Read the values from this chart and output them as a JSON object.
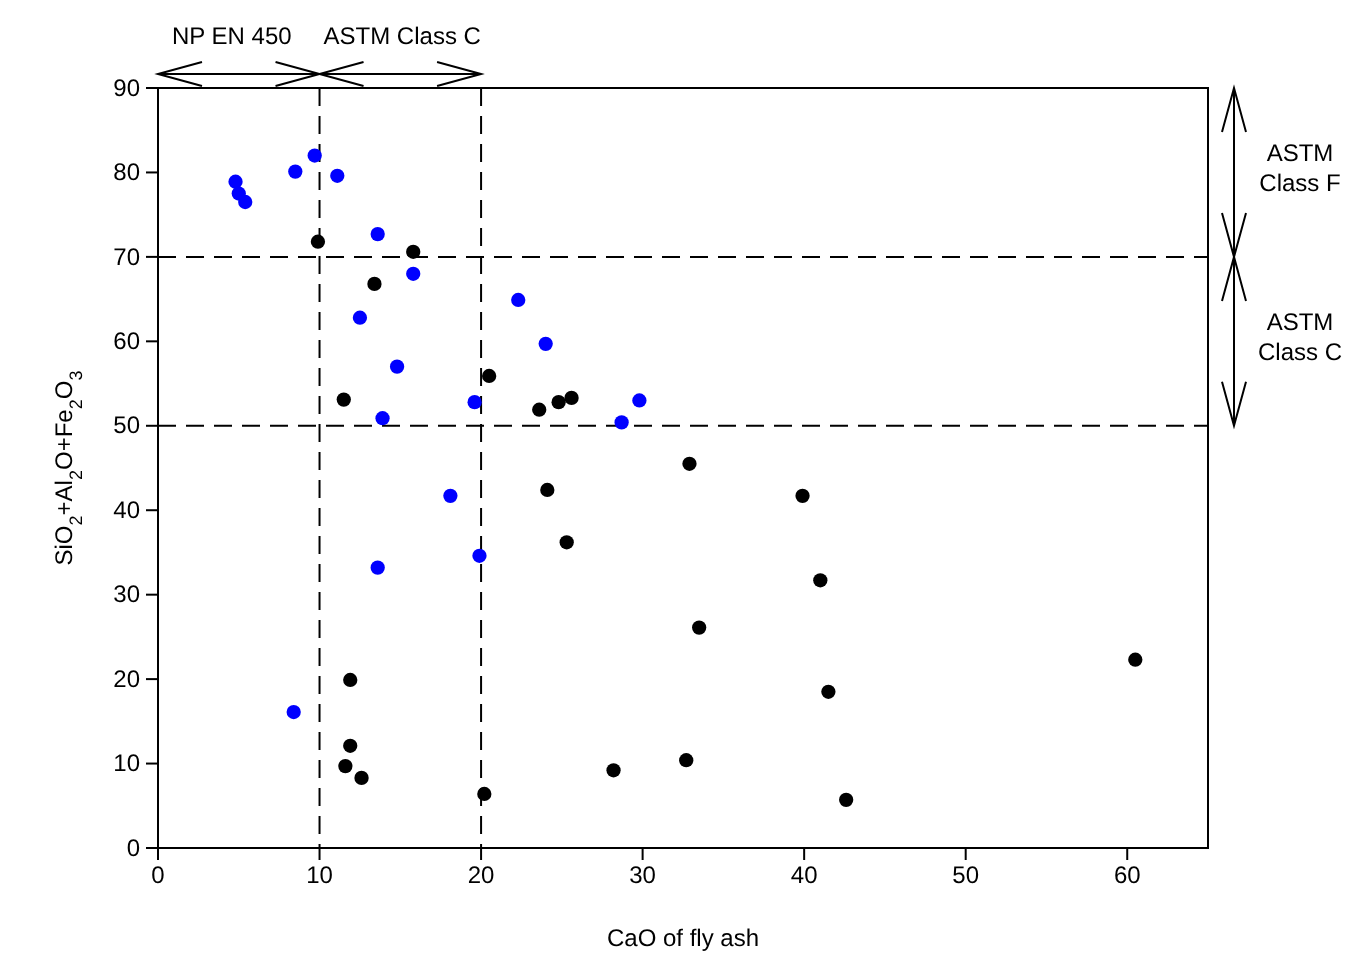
{
  "chart_data": {
    "type": "scatter",
    "xlabel": "CaO of fly ash",
    "ylabel": "SiO$_{2}$+Al$_{2}$O+Fe$_{2}$O$_{3}$",
    "xlim": [
      0,
      65
    ],
    "ylim": [
      0,
      90
    ],
    "xticks": [
      0,
      10,
      20,
      30,
      40,
      50,
      60
    ],
    "yticks": [
      0,
      10,
      20,
      30,
      40,
      50,
      60,
      70,
      80,
      90
    ],
    "grid": false,
    "marker": "circle",
    "series": [
      {
        "color": "#0000ff",
        "x": [
          4.8,
          5.0,
          5.4,
          8.5,
          9.7,
          11.1,
          13.6,
          15.8,
          12.5,
          14.8,
          13.9,
          22.3,
          24.0,
          19.6,
          28.7,
          29.8,
          18.1,
          19.9,
          13.6,
          8.4
        ],
        "values": [
          78.9,
          77.5,
          76.5,
          80.1,
          82,
          79.6,
          72.7,
          68,
          62.8,
          57,
          50.9,
          64.9,
          59.7,
          52.8,
          50.4,
          53,
          41.7,
          34.6,
          33.2,
          16.1
        ]
      },
      {
        "color": "#000000",
        "x": [
          9.9,
          15.8,
          13.4,
          11.5,
          20.5,
          23.6,
          24.8,
          25.6,
          32.9,
          39.9,
          41.0,
          33.5,
          24.1,
          25.3,
          11.9,
          41.5,
          60.5,
          11.9,
          11.6,
          12.6,
          20.2,
          28.2,
          32.7,
          42.6
        ],
        "values": [
          71.8,
          70.6,
          66.8,
          53.1,
          55.9,
          51.9,
          52.8,
          53.3,
          45.5,
          41.7,
          31.7,
          26.1,
          42.4,
          36.2,
          19.9,
          18.5,
          22.3,
          12.1,
          9.7,
          8.3,
          6.4,
          9.2,
          10.4,
          5.7
        ]
      }
    ],
    "ref_lines": [
      {
        "axis": "x",
        "value": 10,
        "line_style": "dashed"
      },
      {
        "axis": "x",
        "value": 20,
        "line_style": "dashed"
      },
      {
        "axis": "y",
        "value": 50,
        "line_style": "dashed"
      },
      {
        "axis": "y",
        "value": 70,
        "line_style": "dashed"
      }
    ],
    "annotations": [
      "NP EN 450",
      "ASTM  Class C",
      "ASTM\nClass F",
      "ASTM\nClass C"
    ]
  }
}
